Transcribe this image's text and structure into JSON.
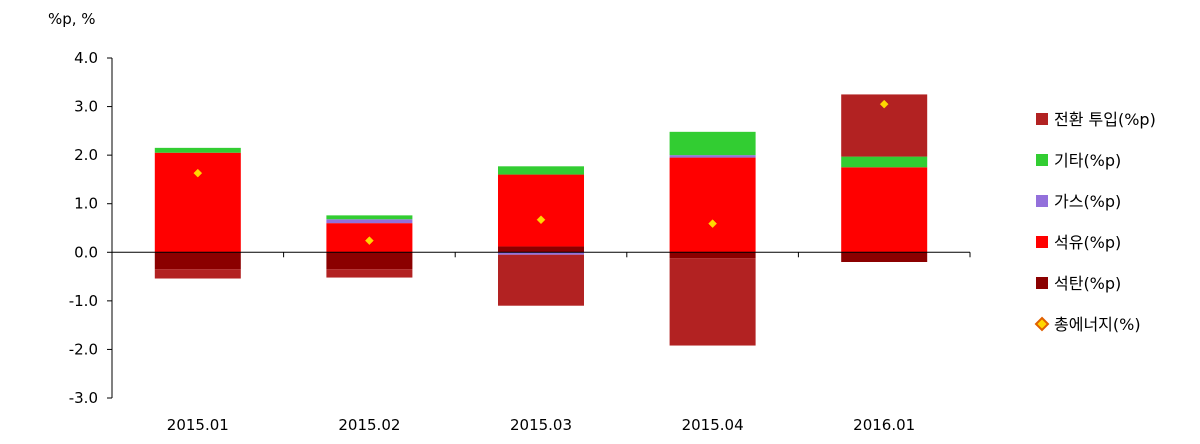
{
  "chart_data": {
    "type": "bar",
    "stacked": true,
    "y_unit_label": "%p, %",
    "categories": [
      "2015.01",
      "2015.02",
      "2015.03",
      "2015.04",
      "2016.01"
    ],
    "ylim": [
      -3.0,
      4.0
    ],
    "yticks": [
      "4.0",
      "3.0",
      "2.0",
      "1.0",
      "0.0",
      "-1.0",
      "-2.0",
      "-3.0"
    ],
    "ytick_values": [
      4,
      3,
      2,
      1,
      0,
      -1,
      -2,
      -3
    ],
    "grid": false,
    "legend_position": "right",
    "series": [
      {
        "name": "석탄(%p)",
        "color": "#8b0000",
        "values": [
          -0.35,
          -0.35,
          0.12,
          -0.12,
          -0.2
        ]
      },
      {
        "name": "석유(%p)",
        "color": "#ff0000",
        "values": [
          2.05,
          0.6,
          1.48,
          1.95,
          1.75
        ]
      },
      {
        "name": "가스(%p)",
        "color": "#9370db",
        "values": [
          0.0,
          0.08,
          -0.05,
          0.05,
          0.0
        ]
      },
      {
        "name": "기타(%p)",
        "color": "#32cd32",
        "values": [
          0.1,
          0.08,
          0.17,
          0.48,
          0.22
        ]
      },
      {
        "name": "전환 투입(%p)",
        "color": "#b22222",
        "values": [
          -0.19,
          -0.17,
          -1.05,
          -1.8,
          1.28
        ]
      }
    ],
    "markers": {
      "name": "총에너지(%)",
      "color": "#ffd700",
      "stroke": "#e06000",
      "values": [
        1.63,
        0.24,
        0.67,
        0.59,
        3.05
      ]
    },
    "legend_order": [
      "전환 투입(%p)",
      "기타(%p)",
      "가스(%p)",
      "석유(%p)",
      "석탄(%p)",
      "총에너지(%)"
    ]
  }
}
